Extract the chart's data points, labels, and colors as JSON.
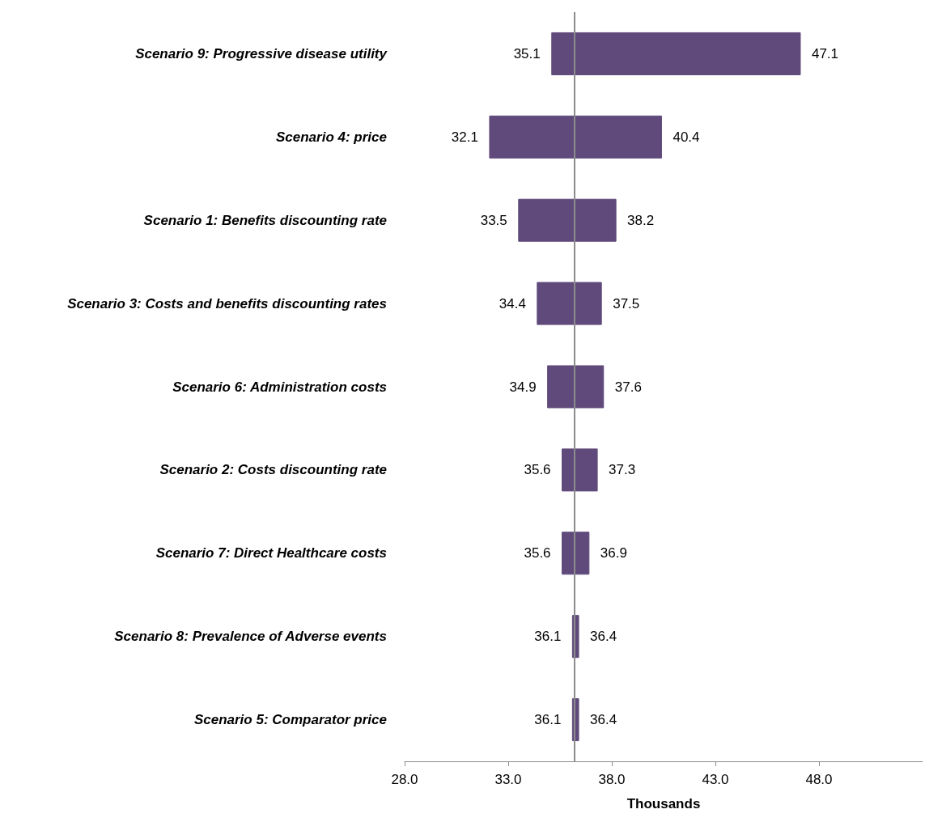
{
  "chart_data": {
    "type": "bar",
    "orientation": "horizontal",
    "xlabel": "Thousands",
    "categories": [
      "Scenario 9: Progressive disease utility",
      "Scenario 4: price",
      "Scenario 1: Benefits discounting rate",
      "Scenario 3: Costs and benefits discounting rates",
      "Scenario 6: Administration costs",
      "Scenario 2: Costs discounting rate",
      "Scenario 7: Direct Healthcare costs",
      "Scenario 8: Prevalence of Adverse events",
      "Scenario 5: Comparator price"
    ],
    "base": [
      35.1,
      32.1,
      33.5,
      34.4,
      34.9,
      35.6,
      35.6,
      36.1,
      36.1
    ],
    "values": [
      12.0,
      8.3,
      4.7,
      3.1,
      2.7,
      1.7,
      1.3,
      0.3,
      0.3
    ],
    "color": "#604a7b",
    "xlim": [
      28,
      53
    ],
    "xticks": [
      {
        "value": 28,
        "label": "28.0"
      },
      {
        "value": 33,
        "label": "33.0"
      },
      {
        "value": 38,
        "label": "38.0"
      },
      {
        "value": 43,
        "label": "43.0"
      },
      {
        "value": 48,
        "label": "48.0"
      }
    ],
    "ref_lines": [
      {
        "axis": "x",
        "value": 36.2,
        "color": "#8c8c8c"
      }
    ],
    "grid": false,
    "annotations": [
      {
        "text": "35.1",
        "x": 35.1,
        "y": "Scenario 9: Progressive disease utility"
      },
      {
        "text": "47.1",
        "x": 47.1,
        "y": "Scenario 9: Progressive disease utility"
      },
      {
        "text": "32.1",
        "x": 32.1,
        "y": "Scenario 4: price"
      },
      {
        "text": "40.4",
        "x": 40.4,
        "y": "Scenario 4: price"
      },
      {
        "text": "33.5",
        "x": 33.5,
        "y": "Scenario 1: Benefits discounting rate"
      },
      {
        "text": "38.2",
        "x": 38.2,
        "y": "Scenario 1: Benefits discounting rate"
      },
      {
        "text": "34.4",
        "x": 34.4,
        "y": "Scenario 3: Costs and benefits discounting rates"
      },
      {
        "text": "37.5",
        "x": 37.5,
        "y": "Scenario 3: Costs and benefits discounting rates"
      },
      {
        "text": "34.9",
        "x": 34.9,
        "y": "Scenario 6: Administration costs"
      },
      {
        "text": "37.6",
        "x": 37.6,
        "y": "Scenario 6: Administration costs"
      },
      {
        "text": "35.6",
        "x": 35.6,
        "y": "Scenario 2: Costs discounting rate"
      },
      {
        "text": "37.3",
        "x": 37.3,
        "y": "Scenario 2: Costs discounting rate"
      },
      {
        "text": "35.6",
        "x": 35.6,
        "y": "Scenario 7: Direct Healthcare costs"
      },
      {
        "text": "36.9",
        "x": 36.9,
        "y": "Scenario 7: Direct Healthcare costs"
      },
      {
        "text": "36.1",
        "x": 36.1,
        "y": "Scenario 8: Prevalence of Adverse events"
      },
      {
        "text": "36.4",
        "x": 36.4,
        "y": "Scenario 8: Prevalence of Adverse events"
      },
      {
        "text": "36.1",
        "x": 36.1,
        "y": "Scenario 5: Comparator price"
      },
      {
        "text": "36.4",
        "x": 36.4,
        "y": "Scenario 5: Comparator price"
      }
    ]
  }
}
